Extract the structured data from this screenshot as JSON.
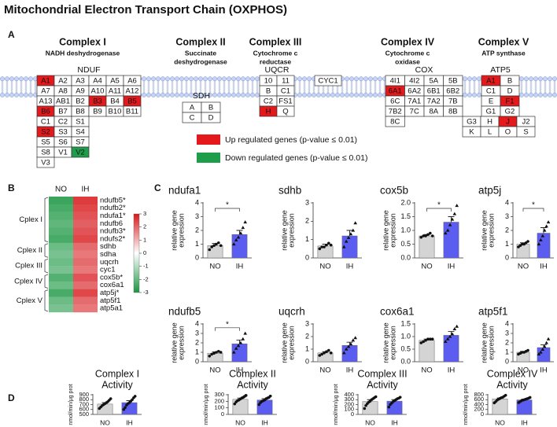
{
  "title": "Mitochondrial Electron Transport Chain (OXPHOS)",
  "panel_a": {
    "label": "A",
    "complexes": [
      {
        "name": "Complex I",
        "subtitle": [
          "NADH deshydrogenase"
        ],
        "family": "NDUF",
        "rows": [
          [
            {
              "label": "A1",
              "status": "up"
            },
            "A2",
            "A3",
            "A4",
            "A5",
            "A6"
          ],
          [
            "A7",
            "A8",
            "A9",
            "A10",
            "A11",
            "A12"
          ],
          [
            "A13",
            "AB1",
            "B2",
            {
              "label": "B3",
              "status": "up"
            },
            "B4",
            {
              "label": "B5",
              "status": "up"
            }
          ],
          [
            {
              "label": "B6",
              "status": "up"
            },
            "B7",
            "B8",
            "B9",
            "B10",
            "B11"
          ],
          [
            "C1",
            "C2",
            "S1"
          ],
          [
            {
              "label": "S2",
              "status": "up"
            },
            "S3",
            "S4"
          ],
          [
            "S5",
            "S6",
            "S7"
          ],
          [
            "S8",
            "V1",
            {
              "label": "V2",
              "status": "down"
            }
          ],
          [
            "V3"
          ]
        ]
      },
      {
        "name": "Complex II",
        "subtitle": [
          "Succinate",
          "deshydrogenase"
        ],
        "family": "SDH",
        "rows": [
          [
            "A",
            "B"
          ],
          [
            "C",
            "D"
          ]
        ]
      },
      {
        "name": "Complex III",
        "subtitle": [
          "Cytochrome c",
          "reductase"
        ],
        "family": "UQCR",
        "rows": [
          [
            "10",
            "11"
          ],
          [
            "B",
            "C1"
          ],
          [
            "C2",
            "FS1"
          ],
          [
            {
              "label": "H",
              "status": "up"
            },
            "Q"
          ]
        ]
      },
      {
        "name": "Complex IV",
        "subtitle": [
          "Cytochrome c",
          "oxidase"
        ],
        "family": "COX",
        "rows": [
          [
            "4I1",
            "4I2",
            "5A",
            "5B"
          ],
          [
            {
              "label": "6A1",
              "status": "up"
            },
            "6A2",
            "6B1",
            "6B2"
          ],
          [
            "6C",
            "7A1",
            "7A2",
            "7B"
          ],
          [
            "7B2",
            "7C",
            "8A",
            "8B"
          ],
          [
            "8C"
          ]
        ]
      },
      {
        "name": "Complex V",
        "subtitle": [
          "ATP synthase"
        ],
        "family": "ATP5",
        "rows": [
          [
            {
              "label": "A1",
              "status": "up"
            },
            "B"
          ],
          [
            "C1",
            "D"
          ],
          [
            "E",
            {
              "label": "F1",
              "status": "up"
            }
          ],
          [
            "G1",
            "G2"
          ],
          [
            "G3",
            "H",
            {
              "label": "J",
              "status": "up"
            },
            "J2"
          ],
          [
            "K",
            "L",
            "O",
            "S"
          ]
        ]
      }
    ],
    "standalone": [
      {
        "label": "CYC1"
      }
    ],
    "legend": [
      {
        "label": "Up regulated genes (p-value ≤ 0.01)",
        "status": "up",
        "color": "#e3191c"
      },
      {
        "label": "Down regulated genes (p-value ≤ 0.01)",
        "status": "down",
        "color": "#1e9e4a"
      }
    ]
  },
  "panel_b": {
    "label": "B",
    "columns": [
      "NO",
      "IH"
    ],
    "groups": [
      {
        "name": "Cplex I",
        "genes": [
          "ndufb5*",
          "ndufb2*",
          "ndufa1*",
          "ndufb6",
          "ndufb3*",
          "ndufs2*"
        ],
        "values": [
          [
            -1.6,
            1.6
          ],
          [
            -1.5,
            1.5
          ],
          [
            -1.4,
            1.4
          ],
          [
            -1.3,
            1.3
          ],
          [
            -1.4,
            1.4
          ],
          [
            -1.5,
            1.5
          ]
        ]
      },
      {
        "name": "Cplex II",
        "genes": [
          "sdhb",
          "sdha"
        ],
        "values": [
          [
            -1.2,
            1.2
          ],
          [
            -1.1,
            1.1
          ]
        ]
      },
      {
        "name": "Cplex III",
        "genes": [
          "uqcrh",
          "cyc1"
        ],
        "values": [
          [
            -1.2,
            1.2
          ],
          [
            -1.1,
            1.1
          ]
        ]
      },
      {
        "name": "Cplex IV",
        "genes": [
          "cox5b*",
          "cox6a1"
        ],
        "values": [
          [
            -1.4,
            1.4
          ],
          [
            -1.2,
            1.2
          ]
        ]
      },
      {
        "name": "Cplex V",
        "genes": [
          "atp5j*",
          "atp5f1",
          "atp5a1"
        ],
        "values": [
          [
            -1.5,
            1.5
          ],
          [
            -1.2,
            1.2
          ],
          [
            -1.1,
            1.1
          ]
        ]
      }
    ],
    "colorbar": {
      "lim": [
        -3,
        3
      ],
      "ticks": [
        3,
        2,
        1,
        0,
        -1,
        -2,
        -3
      ]
    }
  },
  "panel_c": {
    "label": "C"
  },
  "panel_d": {
    "label": "D"
  },
  "chart_data": [
    {
      "type": "bar",
      "title": "ndufa1",
      "ylabel": [
        "relative gene",
        "expression"
      ],
      "categories": [
        "NO",
        "IH"
      ],
      "values": [
        0.9,
        1.7
      ],
      "errors": [
        0.15,
        0.3
      ],
      "points": [
        [
          0.6,
          0.8,
          0.9,
          1.0,
          1.1,
          0.9
        ],
        [
          1.0,
          1.3,
          1.5,
          1.8,
          2.2,
          2.6
        ]
      ],
      "markers": [
        "circle",
        "triangle"
      ],
      "colors": [
        "#d4d4d4",
        "#5b5cf0"
      ],
      "ylim": [
        0,
        4
      ],
      "yticks": [
        0,
        1,
        2,
        3,
        4
      ],
      "significance": "*"
    },
    {
      "type": "bar",
      "title": "sdhb",
      "ylabel": [
        "relative gene",
        "expression"
      ],
      "categories": [
        "NO",
        "IH"
      ],
      "values": [
        0.65,
        1.2
      ],
      "errors": [
        0.1,
        0.3
      ],
      "points": [
        [
          0.5,
          0.6,
          0.6,
          0.7,
          0.8,
          0.7
        ],
        [
          0.6,
          0.9,
          1.1,
          1.3,
          1.5,
          1.9
        ]
      ],
      "markers": [
        "circle",
        "triangle"
      ],
      "colors": [
        "#d4d4d4",
        "#5b5cf0"
      ],
      "ylim": [
        0,
        3
      ],
      "yticks": [
        0,
        1,
        2,
        3
      ]
    },
    {
      "type": "bar",
      "title": "cox5b",
      "ylabel": [
        "relative gene",
        "expression"
      ],
      "categories": [
        "NO",
        "IH"
      ],
      "values": [
        0.8,
        1.3
      ],
      "errors": [
        0.05,
        0.2
      ],
      "points": [
        [
          0.75,
          0.8,
          0.8,
          0.85,
          0.9,
          0.8
        ],
        [
          0.9,
          1.0,
          1.2,
          1.4,
          1.6,
          1.9
        ]
      ],
      "markers": [
        "circle",
        "triangle"
      ],
      "colors": [
        "#d4d4d4",
        "#5b5cf0"
      ],
      "ylim": [
        0,
        2
      ],
      "yticks": [
        {
          "value": 0,
          "label": "0.0"
        },
        0.5,
        {
          "value": 1,
          "label": "1.0"
        },
        1.5,
        {
          "value": 2,
          "label": "2.0"
        }
      ],
      "significance": "*"
    },
    {
      "type": "bar",
      "title": "atp5j",
      "ylabel": [
        "relative gene",
        "expression"
      ],
      "categories": [
        "NO",
        "IH"
      ],
      "values": [
        1.0,
        1.8
      ],
      "errors": [
        0.1,
        0.4
      ],
      "points": [
        [
          0.8,
          0.9,
          1.0,
          1.0,
          1.1,
          1.2
        ],
        [
          1.0,
          1.3,
          1.6,
          2.0,
          2.3,
          2.6
        ]
      ],
      "markers": [
        "circle",
        "triangle"
      ],
      "colors": [
        "#d4d4d4",
        "#5b5cf0"
      ],
      "ylim": [
        0,
        4
      ],
      "yticks": [
        0,
        1,
        2,
        3,
        4
      ],
      "significance": "*"
    },
    {
      "type": "bar",
      "title": "ndufb5",
      "ylabel": [
        "relative gene",
        "expression"
      ],
      "categories": [
        "NO",
        "IH"
      ],
      "values": [
        0.9,
        1.9
      ],
      "errors": [
        0.15,
        0.4
      ],
      "points": [
        [
          0.6,
          0.8,
          0.9,
          1.0,
          1.1,
          1.0
        ],
        [
          1.0,
          1.4,
          1.7,
          2.0,
          2.4,
          3.0
        ]
      ],
      "markers": [
        "circle",
        "triangle"
      ],
      "colors": [
        "#d4d4d4",
        "#5b5cf0"
      ],
      "ylim": [
        0,
        4
      ],
      "yticks": [
        0,
        1,
        2,
        3,
        4
      ],
      "significance": "*"
    },
    {
      "type": "bar",
      "title": "uqcrh",
      "ylabel": [
        "relative gene",
        "expression"
      ],
      "categories": [
        "NO",
        "IH"
      ],
      "values": [
        0.7,
        1.3
      ],
      "errors": [
        0.1,
        0.25
      ],
      "points": [
        [
          0.5,
          0.6,
          0.7,
          0.8,
          0.9,
          0.7
        ],
        [
          0.7,
          1.0,
          1.2,
          1.4,
          1.7,
          1.9
        ]
      ],
      "markers": [
        "circle",
        "triangle"
      ],
      "colors": [
        "#d4d4d4",
        "#5b5cf0"
      ],
      "ylim": [
        0,
        3
      ],
      "yticks": [
        0,
        1,
        2,
        3
      ]
    },
    {
      "type": "bar",
      "title": "cox6a1",
      "ylabel": [
        "relative gene",
        "expression"
      ],
      "categories": [
        "NO",
        "IH"
      ],
      "values": [
        0.85,
        1.05
      ],
      "errors": [
        0.05,
        0.15
      ],
      "points": [
        [
          0.75,
          0.8,
          0.85,
          0.9,
          0.9,
          0.9
        ],
        [
          0.8,
          0.9,
          1.0,
          1.1,
          1.3,
          1.4
        ]
      ],
      "markers": [
        "circle",
        "triangle"
      ],
      "colors": [
        "#d4d4d4",
        "#5b5cf0"
      ],
      "ylim": [
        0,
        1.5
      ],
      "yticks": [
        {
          "value": 0,
          "label": "0.0"
        },
        0.5,
        {
          "value": 1,
          "label": "1.0"
        },
        1.5
      ]
    },
    {
      "type": "bar",
      "title": "atp5f1",
      "ylabel": [
        "relative gene",
        "expression"
      ],
      "categories": [
        "NO",
        "IH"
      ],
      "values": [
        1.0,
        1.5
      ],
      "errors": [
        0.1,
        0.3
      ],
      "points": [
        [
          0.8,
          0.9,
          1.0,
          1.0,
          1.1,
          1.2
        ],
        [
          0.8,
          1.0,
          1.3,
          1.6,
          2.0,
          2.4
        ]
      ],
      "markers": [
        "circle",
        "triangle"
      ],
      "colors": [
        "#d4d4d4",
        "#5b5cf0"
      ],
      "ylim": [
        0,
        4
      ],
      "yticks": [
        0,
        1,
        2,
        3,
        4
      ]
    },
    {
      "type": "bar",
      "title": [
        "Complex I",
        "Activity"
      ],
      "ylabel": [
        "nmol/min/μg prot"
      ],
      "categories": [
        "NO",
        "IH"
      ],
      "values": [
        710,
        740
      ],
      "errors": [
        30,
        40
      ],
      "points": [
        [
          620,
          650,
          680,
          700,
          720,
          740,
          760,
          790,
          820
        ],
        [
          600,
          640,
          690,
          720,
          740,
          770,
          800,
          840,
          870
        ]
      ],
      "markers": [
        "circle",
        "circle"
      ],
      "colors": [
        "#d4d4d4",
        "#5b5cf0"
      ],
      "ylim": [
        500,
        900
      ],
      "yticks": [
        500,
        600,
        700,
        800,
        900
      ]
    },
    {
      "type": "bar",
      "title": [
        "Complex II",
        "Activity"
      ],
      "ylabel": [
        "nmol/min/μg prot"
      ],
      "categories": [
        "NO",
        "IH"
      ],
      "values": [
        230,
        220
      ],
      "errors": [
        20,
        20
      ],
      "points": [
        [
          160,
          190,
          210,
          220,
          235,
          250,
          260,
          275,
          290
        ],
        [
          150,
          180,
          200,
          210,
          220,
          240,
          250,
          260,
          280
        ]
      ],
      "markers": [
        "circle",
        "circle"
      ],
      "colors": [
        "#d4d4d4",
        "#5b5cf0"
      ],
      "ylim": [
        0,
        300
      ],
      "yticks": [
        0,
        100,
        200,
        300
      ]
    },
    {
      "type": "bar",
      "title": [
        "Complex III",
        "Activity"
      ],
      "ylabel": [
        "nmol/min/μg prot"
      ],
      "categories": [
        "NO",
        "IH"
      ],
      "values": [
        260,
        270
      ],
      "errors": [
        40,
        30
      ],
      "points": [
        [
          120,
          180,
          220,
          250,
          270,
          300,
          320,
          340,
          360
        ],
        [
          150,
          200,
          230,
          260,
          280,
          300,
          320,
          330,
          350
        ]
      ],
      "markers": [
        "circle",
        "circle"
      ],
      "colors": [
        "#d4d4d4",
        "#5b5cf0"
      ],
      "ylim": [
        0,
        400
      ],
      "yticks": [
        0,
        100,
        200,
        300,
        400
      ]
    },
    {
      "type": "bar",
      "title": [
        "Complex IV",
        "Activity"
      ],
      "ylabel": [
        "nmol/min/μg prot"
      ],
      "categories": [
        "NO",
        "IH"
      ],
      "values": [
        630,
        590
      ],
      "errors": [
        40,
        30
      ],
      "points": [
        [
          470,
          520,
          580,
          620,
          650,
          680,
          700,
          740,
          780
        ],
        [
          480,
          520,
          560,
          580,
          600,
          620,
          640,
          660,
          690
        ]
      ],
      "markers": [
        "circle",
        "circle"
      ],
      "colors": [
        "#d4d4d4",
        "#5b5cf0"
      ],
      "ylim": [
        0,
        800
      ],
      "yticks": [
        0,
        200,
        400,
        600,
        800
      ]
    }
  ]
}
